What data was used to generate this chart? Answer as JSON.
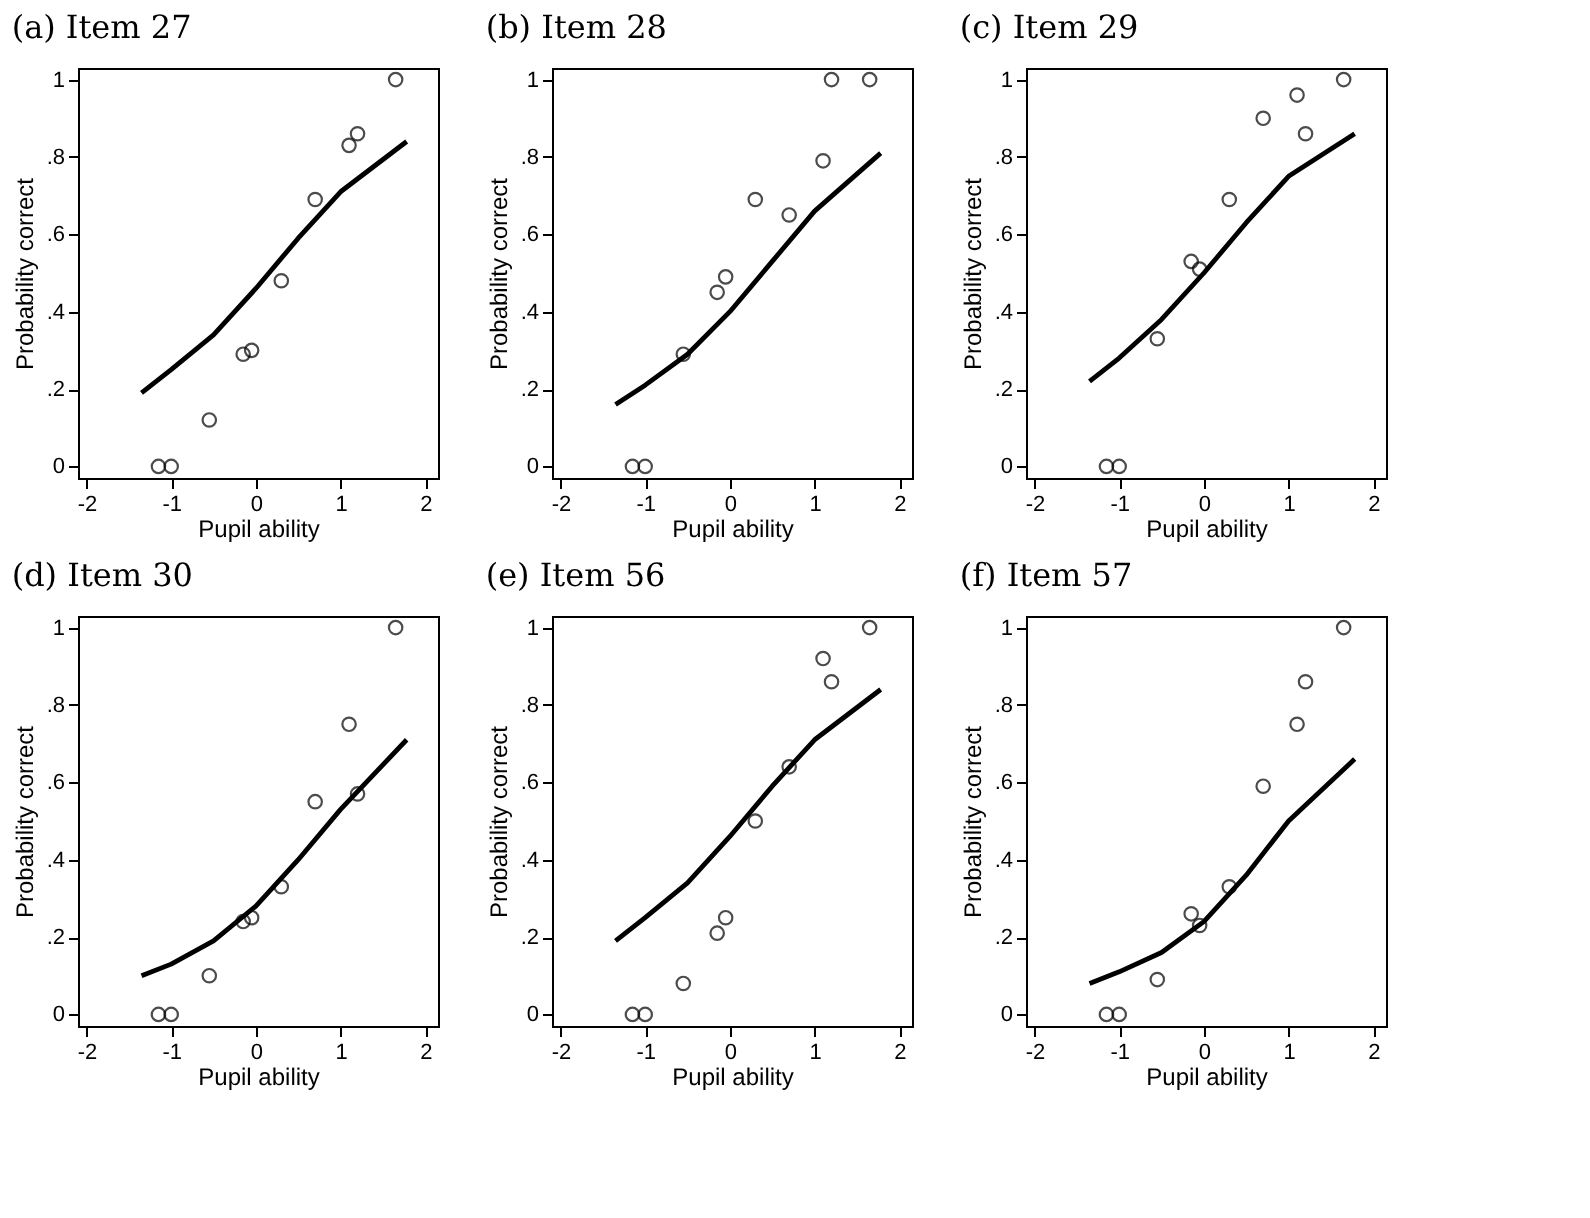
{
  "chart_data": [
    {
      "type": "scatter",
      "title": "(a) Item 27",
      "xlabel": "Pupil ability",
      "ylabel": "Probability correct",
      "xlim": [
        -2.1,
        2.15
      ],
      "ylim": [
        -0.03,
        1.03
      ],
      "xticks": [
        -2,
        -1,
        0,
        1,
        2
      ],
      "yticks": [
        0,
        {
          "value": 0.2,
          "label": ".2"
        },
        {
          "value": 0.4,
          "label": ".4"
        },
        {
          "value": 0.6,
          "label": ".6"
        },
        {
          "value": 0.8,
          "label": ".8"
        },
        1
      ],
      "grid": false,
      "series": [
        {
          "marker": "circle",
          "color": "#000000",
          "x": [
            -1.15,
            -1.0,
            -0.55,
            -0.15,
            -0.05,
            0.3,
            0.7,
            1.1,
            1.2,
            1.65
          ],
          "values": [
            0,
            0,
            0.12,
            0.29,
            0.3,
            0.48,
            0.69,
            0.83,
            0.86,
            1.0
          ]
        },
        {
          "type": "line",
          "line_style": "solid",
          "color": "#000000",
          "x": [
            -1.35,
            -1.0,
            -0.5,
            0,
            0.5,
            1.0,
            1.78
          ],
          "values": [
            0.19,
            0.25,
            0.34,
            0.46,
            0.59,
            0.71,
            0.84
          ]
        }
      ]
    },
    {
      "type": "scatter",
      "title": "(b) Item 28",
      "xlabel": "Pupil ability",
      "ylabel": "Probability correct",
      "xlim": [
        -2.1,
        2.15
      ],
      "ylim": [
        -0.03,
        1.03
      ],
      "xticks": [
        -2,
        -1,
        0,
        1,
        2
      ],
      "yticks": [
        0,
        {
          "value": 0.2,
          "label": ".2"
        },
        {
          "value": 0.4,
          "label": ".4"
        },
        {
          "value": 0.6,
          "label": ".6"
        },
        {
          "value": 0.8,
          "label": ".8"
        },
        1
      ],
      "grid": false,
      "series": [
        {
          "marker": "circle",
          "color": "#000000",
          "x": [
            -1.15,
            -1.0,
            -0.55,
            -0.15,
            -0.05,
            0.3,
            0.7,
            1.1,
            1.2,
            1.65
          ],
          "values": [
            0,
            0,
            0.29,
            0.45,
            0.49,
            0.69,
            0.65,
            0.79,
            1.0,
            1.0
          ]
        },
        {
          "type": "line",
          "line_style": "solid",
          "color": "#000000",
          "x": [
            -1.35,
            -1.0,
            -0.5,
            0,
            0.5,
            1.0,
            1.78
          ],
          "values": [
            0.16,
            0.21,
            0.29,
            0.4,
            0.53,
            0.66,
            0.81
          ]
        }
      ]
    },
    {
      "type": "scatter",
      "title": "(c) Item 29",
      "xlabel": "Pupil ability",
      "ylabel": "Probability correct",
      "xlim": [
        -2.1,
        2.15
      ],
      "ylim": [
        -0.03,
        1.03
      ],
      "xticks": [
        -2,
        -1,
        0,
        1,
        2
      ],
      "yticks": [
        0,
        {
          "value": 0.2,
          "label": ".2"
        },
        {
          "value": 0.4,
          "label": ".4"
        },
        {
          "value": 0.6,
          "label": ".6"
        },
        {
          "value": 0.8,
          "label": ".8"
        },
        1
      ],
      "grid": false,
      "series": [
        {
          "marker": "circle",
          "color": "#000000",
          "x": [
            -1.15,
            -1.0,
            -0.55,
            -0.15,
            -0.05,
            0.3,
            0.7,
            1.1,
            1.2,
            1.65
          ],
          "values": [
            0,
            0,
            0.33,
            0.53,
            0.51,
            0.69,
            0.9,
            0.96,
            0.86,
            1.0
          ]
        },
        {
          "type": "line",
          "line_style": "solid",
          "color": "#000000",
          "x": [
            -1.35,
            -1.0,
            -0.5,
            0,
            0.5,
            1.0,
            1.78
          ],
          "values": [
            0.22,
            0.28,
            0.38,
            0.5,
            0.63,
            0.75,
            0.86
          ]
        }
      ]
    },
    {
      "type": "scatter",
      "title": "(d) Item 30",
      "xlabel": "Pupil ability",
      "ylabel": "Probability correct",
      "xlim": [
        -2.1,
        2.15
      ],
      "ylim": [
        -0.03,
        1.03
      ],
      "xticks": [
        -2,
        -1,
        0,
        1,
        2
      ],
      "yticks": [
        0,
        {
          "value": 0.2,
          "label": ".2"
        },
        {
          "value": 0.4,
          "label": ".4"
        },
        {
          "value": 0.6,
          "label": ".6"
        },
        {
          "value": 0.8,
          "label": ".8"
        },
        1
      ],
      "grid": false,
      "series": [
        {
          "marker": "circle",
          "color": "#000000",
          "x": [
            -1.15,
            -1.0,
            -0.55,
            -0.15,
            -0.05,
            0.3,
            0.7,
            1.1,
            1.2,
            1.65
          ],
          "values": [
            0,
            0,
            0.1,
            0.24,
            0.25,
            0.33,
            0.55,
            0.75,
            0.57,
            1.0
          ]
        },
        {
          "type": "line",
          "line_style": "solid",
          "color": "#000000",
          "x": [
            -1.35,
            -1.0,
            -0.5,
            0,
            0.5,
            1.0,
            1.78
          ],
          "values": [
            0.1,
            0.13,
            0.19,
            0.28,
            0.4,
            0.53,
            0.71
          ]
        }
      ]
    },
    {
      "type": "scatter",
      "title": "(e) Item 56",
      "xlabel": "Pupil ability",
      "ylabel": "Probability correct",
      "xlim": [
        -2.1,
        2.15
      ],
      "ylim": [
        -0.03,
        1.03
      ],
      "xticks": [
        -2,
        -1,
        0,
        1,
        2
      ],
      "yticks": [
        0,
        {
          "value": 0.2,
          "label": ".2"
        },
        {
          "value": 0.4,
          "label": ".4"
        },
        {
          "value": 0.6,
          "label": ".6"
        },
        {
          "value": 0.8,
          "label": ".8"
        },
        1
      ],
      "grid": false,
      "series": [
        {
          "marker": "circle",
          "color": "#000000",
          "x": [
            -1.15,
            -1.0,
            -0.55,
            -0.15,
            -0.05,
            0.3,
            0.7,
            1.1,
            1.2,
            1.65
          ],
          "values": [
            0,
            0,
            0.08,
            0.21,
            0.25,
            0.5,
            0.64,
            0.92,
            0.86,
            1.0
          ]
        },
        {
          "type": "line",
          "line_style": "solid",
          "color": "#000000",
          "x": [
            -1.35,
            -1.0,
            -0.5,
            0,
            0.5,
            1.0,
            1.78
          ],
          "values": [
            0.19,
            0.25,
            0.34,
            0.46,
            0.59,
            0.71,
            0.84
          ]
        }
      ]
    },
    {
      "type": "scatter",
      "title": "(f) Item 57",
      "xlabel": "Pupil ability",
      "ylabel": "Probability correct",
      "xlim": [
        -2.1,
        2.15
      ],
      "ylim": [
        -0.03,
        1.03
      ],
      "xticks": [
        -2,
        -1,
        0,
        1,
        2
      ],
      "yticks": [
        0,
        {
          "value": 0.2,
          "label": ".2"
        },
        {
          "value": 0.4,
          "label": ".4"
        },
        {
          "value": 0.6,
          "label": ".6"
        },
        {
          "value": 0.8,
          "label": ".8"
        },
        1
      ],
      "grid": false,
      "series": [
        {
          "marker": "circle",
          "color": "#000000",
          "x": [
            -1.15,
            -1.0,
            -0.55,
            -0.15,
            -0.05,
            0.3,
            0.7,
            1.1,
            1.2,
            1.65
          ],
          "values": [
            0,
            0,
            0.09,
            0.26,
            0.23,
            0.33,
            0.59,
            0.75,
            0.86,
            1.0
          ]
        },
        {
          "type": "line",
          "line_style": "solid",
          "color": "#000000",
          "x": [
            -1.35,
            -1.0,
            -0.5,
            0,
            0.5,
            1.0,
            1.78
          ],
          "values": [
            0.08,
            0.11,
            0.16,
            0.24,
            0.36,
            0.5,
            0.66
          ]
        }
      ]
    }
  ]
}
